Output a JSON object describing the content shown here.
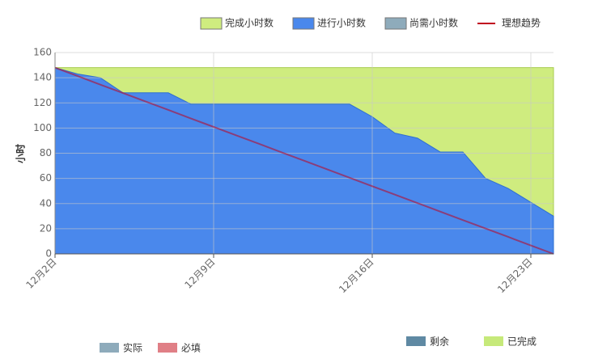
{
  "chart_data": {
    "type": "area",
    "ylabel": "小时",
    "categories": [
      "12月2日",
      null,
      null,
      null,
      null,
      null,
      null,
      "12月9日",
      null,
      null,
      null,
      null,
      null,
      null,
      "12月16日",
      null,
      null,
      null,
      null,
      null,
      null,
      "12月23日",
      null
    ],
    "series": [
      {
        "name": "完成小时数",
        "color": "#cfec7f",
        "values": [
          148,
          148,
          148,
          148,
          148,
          148,
          148,
          148,
          148,
          148,
          148,
          148,
          148,
          148,
          148,
          148,
          148,
          148,
          148,
          148,
          148,
          148,
          148
        ]
      },
      {
        "name": "进行小时数",
        "color": "#4a88ec",
        "values": [
          148,
          143,
          140,
          128,
          128,
          128,
          119,
          119,
          119,
          119,
          119,
          119,
          119,
          119,
          109,
          96,
          92,
          81,
          81,
          60,
          52,
          41,
          30
        ]
      },
      {
        "name": "尚需小时数",
        "color": "#8eabbb"
      },
      {
        "name": "理想趋势",
        "color": "#c0001e",
        "type": "line",
        "values": [
          148,
          141.3,
          134.5,
          127.8,
          121.1,
          114.4,
          107.6,
          100.9,
          94.2,
          87.5,
          80.7,
          74,
          67.3,
          60.5,
          53.8,
          47.1,
          40.4,
          33.6,
          26.9,
          20.2,
          13.5,
          6.7,
          0
        ]
      }
    ],
    "ylim": [
      0,
      160
    ],
    "yticks": [
      0,
      20,
      40,
      60,
      80,
      100,
      120,
      140,
      160
    ],
    "grid": true,
    "footer_legend": [
      {
        "text": "实际",
        "color": "#8eabbb"
      },
      {
        "text": "必填",
        "color": "#e07f86"
      },
      {
        "text": "剩余",
        "color": "#5f89a3"
      },
      {
        "text": "已完成",
        "color": "#c6e97a"
      }
    ]
  }
}
